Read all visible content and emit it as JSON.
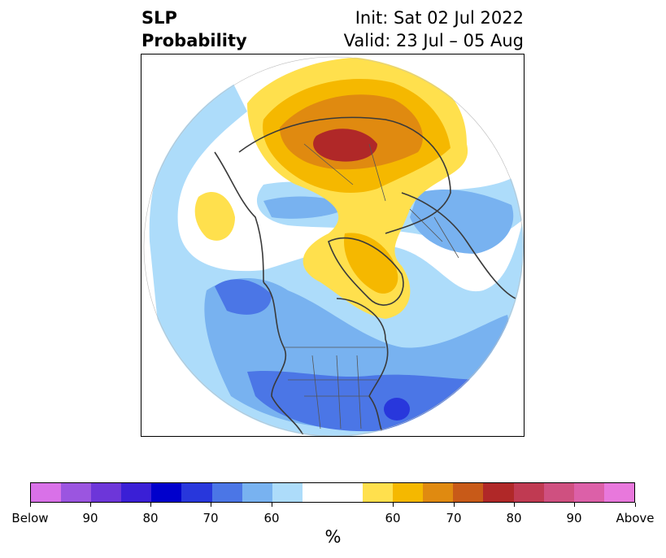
{
  "header": {
    "left_line1": "SLP",
    "left_line2": "Probability",
    "right_line1": "Init: Sat 02 Jul 2022",
    "right_line2": "Valid: 23 Jul – 05 Aug"
  },
  "map": {
    "projection": "polar stereographic, Northern Hemisphere",
    "features": [
      "coastlines",
      "country borders",
      "US state borders",
      "Canadian province borders"
    ],
    "regions": [
      {
        "area": "Siberia / northern Russia",
        "category": "Above",
        "max_probability": "80"
      },
      {
        "area": "Greenland",
        "category": "Above",
        "max_probability": "70"
      },
      {
        "area": "North Pacific",
        "category": "Above",
        "max_probability": "60"
      },
      {
        "area": "Eastern United States / western Atlantic",
        "category": "Below",
        "max_probability": "80"
      },
      {
        "area": "Western North America / Gulf of Alaska",
        "category": "Below",
        "max_probability": "70"
      },
      {
        "area": "Europe",
        "category": "Below",
        "max_probability": "60"
      }
    ]
  },
  "colorbar": {
    "label": "%",
    "colors": [
      "#d971e8",
      "#9b55e0",
      "#6d36d9",
      "#3a1fd6",
      "#0000cc",
      "#2837dc",
      "#4b76e6",
      "#78b2f0",
      "#addcfa",
      "#ffffff",
      "#ffe04d",
      "#f5b800",
      "#e08a10",
      "#c85a18",
      "#b02828",
      "#c03a52",
      "#cf5080",
      "#dc60a8",
      "#e878dc"
    ],
    "ticks": [
      "Below",
      "90",
      "80",
      "70",
      "60",
      "60",
      "70",
      "80",
      "90",
      "Above"
    ]
  }
}
